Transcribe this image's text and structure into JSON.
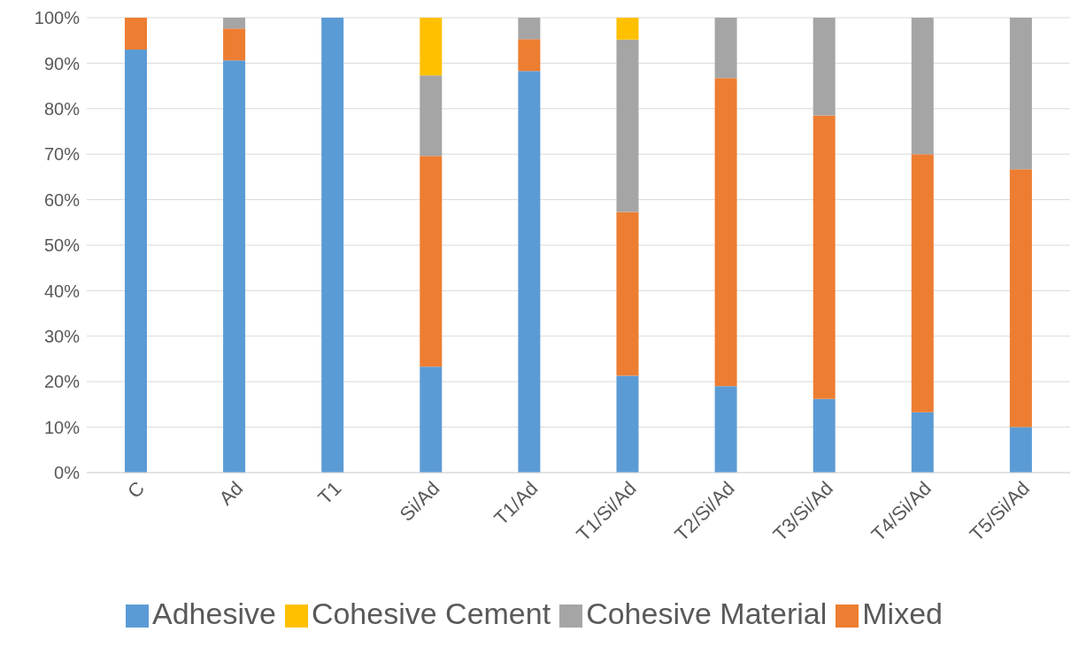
{
  "chart_data": {
    "type": "bar",
    "stacked": true,
    "categories": [
      "C",
      "Ad",
      "T1",
      "Si/Ad",
      "T1/Ad",
      "T1/Si/Ad",
      "T2/Si/Ad",
      "T3/Si/Ad",
      "T4/Si/Ad",
      "T5/Si/Ad"
    ],
    "series": [
      {
        "name": "Adhesive",
        "color": "#5b9bd5",
        "values": [
          93,
          90.6,
          100,
          23.3,
          88.3,
          21.3,
          19,
          16.2,
          13.3,
          10
        ]
      },
      {
        "name": "Mixed",
        "color": "#ed7d31",
        "values": [
          7,
          7,
          0,
          46.3,
          7,
          36,
          67.7,
          62.3,
          56.7,
          56.7
        ]
      },
      {
        "name": "Cohesive Material",
        "color": "#a5a5a5",
        "values": [
          0,
          2.4,
          0,
          17.7,
          4.7,
          37.9,
          13.3,
          21.5,
          30,
          33.3
        ]
      },
      {
        "name": "Cohesive Cement",
        "color": "#ffc000",
        "values": [
          0,
          0,
          0,
          12.7,
          0,
          4.8,
          0,
          0,
          0,
          0
        ]
      }
    ],
    "ylim": [
      0,
      100
    ],
    "yticks": [
      {
        "value": 0,
        "label": "0%"
      },
      {
        "value": 10,
        "label": "10%"
      },
      {
        "value": 20,
        "label": "20%"
      },
      {
        "value": 30,
        "label": "30%"
      },
      {
        "value": 40,
        "label": "40%"
      },
      {
        "value": 50,
        "label": "50%"
      },
      {
        "value": 60,
        "label": "60%"
      },
      {
        "value": 70,
        "label": "70%"
      },
      {
        "value": 80,
        "label": "80%"
      },
      {
        "value": 90,
        "label": "90%"
      },
      {
        "value": 100,
        "label": "100%"
      }
    ],
    "grid": "y",
    "legend": "bottom"
  }
}
